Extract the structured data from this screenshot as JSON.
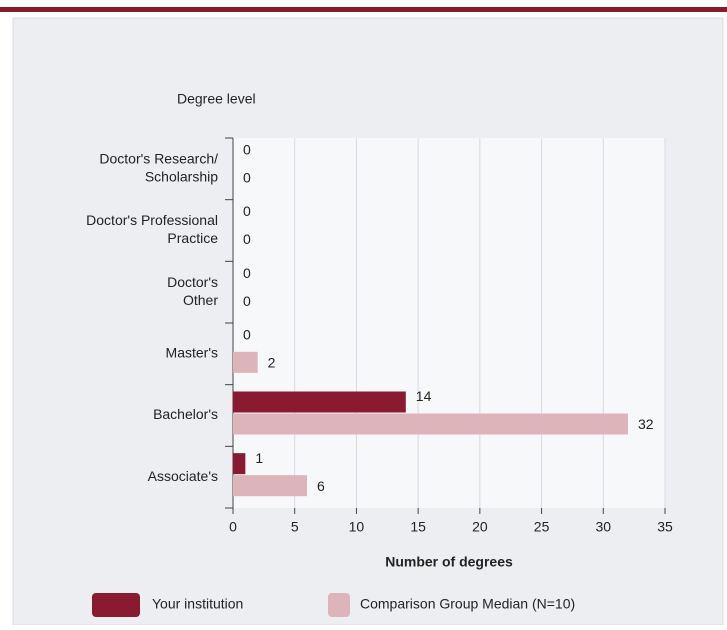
{
  "chart_data": {
    "type": "hbar",
    "y_axis_label": "Degree level",
    "x_axis_label": "Number of degrees",
    "categories": [
      [
        "Doctor's Research/",
        "Scholarship"
      ],
      [
        "Doctor's Professional",
        "Practice"
      ],
      [
        "Doctor's",
        "Other"
      ],
      [
        "Master's"
      ],
      [
        "Bachelor's"
      ],
      [
        "Associate's"
      ]
    ],
    "series": [
      {
        "name": "Your institution",
        "color": "#8a1a2f",
        "values": [
          0,
          0,
          0,
          0,
          14,
          1
        ]
      },
      {
        "name": "Comparison Group Median (N=10)",
        "color": "#dcb4ba",
        "values": [
          0,
          0,
          0,
          2,
          32,
          6
        ]
      }
    ],
    "xlim": [
      0,
      35
    ],
    "xticks": [
      0,
      5,
      10,
      15,
      20,
      25,
      30,
      35
    ],
    "grid": true
  }
}
